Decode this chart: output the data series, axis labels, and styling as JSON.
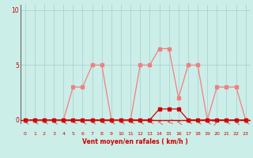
{
  "hours": [
    0,
    1,
    2,
    3,
    4,
    5,
    6,
    7,
    8,
    9,
    10,
    11,
    12,
    13,
    14,
    15,
    16,
    17,
    18,
    19,
    20,
    21,
    22,
    23
  ],
  "vent_moyen": [
    0,
    0,
    0,
    0,
    0,
    0,
    0,
    0,
    0,
    0,
    0,
    0,
    0,
    0,
    1,
    1,
    1,
    0,
    0,
    0,
    0,
    0,
    0,
    0
  ],
  "rafales": [
    0,
    0,
    0,
    0,
    0,
    3,
    3,
    5,
    5,
    0,
    0,
    0,
    5,
    5,
    6.5,
    6.5,
    2,
    5,
    5,
    0,
    3,
    3,
    3,
    0
  ],
  "line_color": "#f08080",
  "dot_color_moyen": "#cc0000",
  "bg_color": "#cceee8",
  "grid_color": "#aacccc",
  "xlabel": "Vent moyen/en rafales ( km/h )",
  "xlim": [
    -0.5,
    23.5
  ],
  "ylim": [
    -0.3,
    10.5
  ],
  "yticks": [
    0,
    5,
    10
  ],
  "xticks": [
    0,
    1,
    2,
    3,
    4,
    5,
    6,
    7,
    8,
    9,
    10,
    11,
    12,
    13,
    14,
    15,
    16,
    17,
    18,
    19,
    20,
    21,
    22,
    23
  ]
}
